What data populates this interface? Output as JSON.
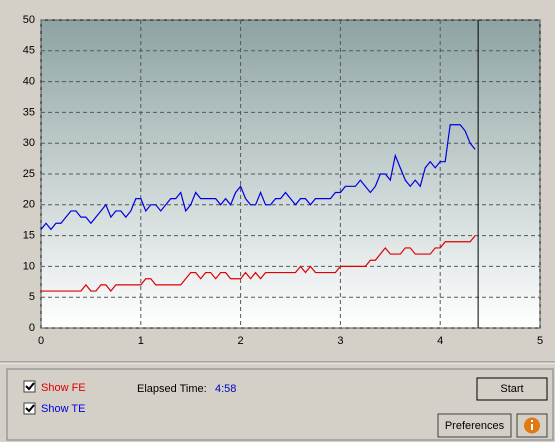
{
  "chart_data": {
    "type": "line",
    "x": [
      0,
      0.05,
      0.1,
      0.15,
      0.2,
      0.25,
      0.3,
      0.35,
      0.4,
      0.45,
      0.5,
      0.55,
      0.6,
      0.65,
      0.7,
      0.75,
      0.8,
      0.85,
      0.9,
      0.95,
      1,
      1.05,
      1.1,
      1.15,
      1.2,
      1.25,
      1.3,
      1.35,
      1.4,
      1.45,
      1.5,
      1.55,
      1.6,
      1.65,
      1.7,
      1.75,
      1.8,
      1.85,
      1.9,
      1.95,
      2,
      2.05,
      2.1,
      2.15,
      2.2,
      2.25,
      2.3,
      2.35,
      2.4,
      2.45,
      2.5,
      2.55,
      2.6,
      2.65,
      2.7,
      2.75,
      2.8,
      2.85,
      2.9,
      2.95,
      3,
      3.05,
      3.1,
      3.15,
      3.2,
      3.25,
      3.3,
      3.35,
      3.4,
      3.45,
      3.5,
      3.55,
      3.6,
      3.65,
      3.7,
      3.75,
      3.8,
      3.85,
      3.9,
      3.95,
      4,
      4.05,
      4.1,
      4.15,
      4.2,
      4.25,
      4.3,
      4.35
    ],
    "series": [
      {
        "name": "Show FE",
        "color": "#e00000",
        "values": [
          6,
          6,
          6,
          6,
          6,
          6,
          6,
          6,
          6,
          7,
          6,
          6,
          7,
          7,
          6,
          7,
          7,
          7,
          7,
          7,
          7,
          8,
          8,
          7,
          7,
          7,
          7,
          7,
          7,
          8,
          9,
          9,
          8,
          9,
          9,
          8,
          9,
          9,
          8,
          8,
          8,
          9,
          8,
          9,
          8,
          9,
          9,
          9,
          9,
          9,
          9,
          9,
          10,
          9,
          10,
          9,
          9,
          9,
          9,
          9,
          10,
          10,
          10,
          10,
          10,
          10,
          11,
          11,
          12,
          13,
          12,
          12,
          12,
          13,
          13,
          12,
          12,
          12,
          12,
          13,
          13,
          14,
          14,
          14,
          14,
          14,
          14,
          15
        ]
      },
      {
        "name": "Show TE",
        "color": "#0000e0",
        "values": [
          16,
          17,
          16,
          17,
          17,
          18,
          19,
          19,
          18,
          18,
          17,
          18,
          19,
          20,
          18,
          19,
          19,
          18,
          19,
          21,
          21,
          19,
          20,
          20,
          19,
          20,
          21,
          21,
          22,
          19,
          20,
          22,
          21,
          21,
          21,
          21,
          20,
          21,
          20,
          22,
          23,
          21,
          20,
          20,
          22,
          20,
          20,
          21,
          21,
          22,
          21,
          20,
          21,
          21,
          20,
          21,
          21,
          21,
          21,
          22,
          22,
          23,
          23,
          23,
          24,
          23,
          22,
          23,
          25,
          25,
          24,
          28,
          26,
          24,
          23,
          24,
          23,
          26,
          27,
          26,
          27,
          27,
          33,
          33,
          33,
          32,
          30,
          29
        ]
      }
    ],
    "xlim": [
      0,
      5
    ],
    "xticks": [
      0,
      1,
      2,
      3,
      4,
      5
    ],
    "ylim": [
      0,
      50
    ],
    "yticks": [
      0,
      5,
      10,
      15,
      20,
      25,
      30,
      35,
      40,
      45,
      50
    ],
    "grid": true,
    "cursor_x": 4.38
  },
  "controls": {
    "elapsed_label": "Elapsed Time:",
    "elapsed_value": "4:58",
    "start_button": "Start",
    "preferences_button": "Preferences"
  }
}
